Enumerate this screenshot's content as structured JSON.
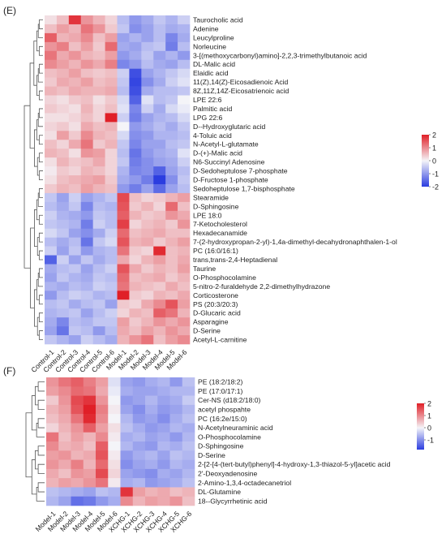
{
  "chart_data": [
    {
      "type": "heatmap",
      "panel_label": "(E)",
      "x": [
        "Control-1",
        "Control-2",
        "Control-3",
        "Control-4",
        "Control-5",
        "Control-6",
        "Model-1",
        "Model-2",
        "Model-3",
        "Model-4",
        "Model-5",
        "Model-6"
      ],
      "y": [
        "Taurocholic acid",
        "Adenine",
        "Leucylproline",
        "Norleucine",
        "3-[(methoxycarbonyl)amino]-2,2,3-trimethylbutanoic acid",
        "DL-Malic acid",
        "Elaidic acid",
        "11(Z),14(Z)-Eicosadienoic Acid",
        "8Z,11Z,14Z-Eicosatrienoic acid",
        "LPE 22:6",
        "Palmitic acid",
        "LPG 22:6",
        "D--Hydroxyglutaric acid",
        "4-Toluic acid",
        "N-Acetyl-L-glutamate",
        "D-(+)-Malic acid",
        "N6-Succinyl Adenosine",
        "D-Sedoheptulose 7-phosphate",
        "D-Fructose 1-phosphate",
        "Sedoheptulose 1,7-bisphosphate",
        "Stearamide",
        "D-Sphingosine",
        "LPE 18:0",
        "7-Ketocholesterol",
        "Hexadecanamide",
        "7-(2-hydroxypropan-2-yl)-1,4a-dimethyl-decahydronaphthalen-1-ol",
        "PC (16:0/16:1)",
        "trans,trans-2,4-Heptadienal",
        "Taurine",
        "O-Phosphocolamine",
        "5-nitro-2-furaldehyde 2,2-dimethylhydrazone",
        "Corticosterone",
        "PS (20:3/20:3)",
        "D-Glucaric acid",
        "Asparagine",
        "D-Serine",
        "Acetyl-L-carnitine"
      ],
      "values": [
        [
          0.2,
          0.5,
          1.8,
          0.9,
          0.6,
          0.3,
          -0.6,
          -1.0,
          -0.8,
          -0.5,
          -0.7,
          -0.4
        ],
        [
          0.5,
          0.8,
          0.6,
          1.2,
          0.9,
          0.4,
          -0.5,
          -1.1,
          -0.9,
          -0.6,
          -0.8,
          -0.7
        ],
        [
          1.4,
          0.6,
          0.7,
          1.0,
          0.5,
          0.8,
          -0.9,
          -0.7,
          -0.9,
          -0.6,
          -1.2,
          -0.8
        ],
        [
          0.9,
          1.1,
          0.5,
          0.8,
          0.4,
          1.3,
          -0.8,
          -0.9,
          -0.6,
          -0.5,
          -1.3,
          -0.6
        ],
        [
          1.2,
          0.7,
          0.9,
          0.6,
          0.5,
          0.8,
          -1.0,
          -0.8,
          -0.5,
          -0.9,
          -0.7,
          -1.0
        ],
        [
          1.0,
          0.8,
          0.6,
          0.9,
          0.7,
          1.1,
          -1.2,
          -1.0,
          -0.6,
          -0.8,
          -0.9,
          -0.6
        ],
        [
          0.5,
          0.6,
          0.8,
          0.5,
          0.4,
          0.5,
          -0.4,
          -1.8,
          -0.9,
          -0.7,
          -0.5,
          -0.3
        ],
        [
          0.4,
          0.7,
          0.6,
          0.8,
          0.5,
          0.6,
          -0.5,
          -1.9,
          -1.1,
          -0.8,
          -0.4,
          -0.2
        ],
        [
          0.6,
          0.5,
          0.7,
          0.6,
          0.6,
          0.7,
          -0.6,
          -1.8,
          -0.8,
          -0.6,
          -0.6,
          -0.5
        ],
        [
          0.3,
          0.2,
          0.4,
          0.5,
          0.2,
          0.4,
          -0.3,
          -1.6,
          -0.2,
          -0.6,
          -0.5,
          0.0
        ],
        [
          0.4,
          0.3,
          0.2,
          0.6,
          0.3,
          0.5,
          -0.2,
          -1.2,
          -0.4,
          -0.8,
          -0.3,
          -0.1
        ],
        [
          0.2,
          0.2,
          0.3,
          0.5,
          0.3,
          2.0,
          -0.4,
          -1.3,
          -0.9,
          -0.7,
          -0.6,
          -0.3
        ],
        [
          0.3,
          0.4,
          0.2,
          0.7,
          0.5,
          0.6,
          0.0,
          -1.0,
          -0.8,
          -0.6,
          -0.8,
          -0.5
        ],
        [
          0.2,
          0.8,
          0.4,
          1.0,
          0.6,
          0.5,
          -0.3,
          -1.1,
          -1.0,
          -0.7,
          -0.7,
          -0.6
        ],
        [
          0.5,
          0.3,
          0.7,
          1.2,
          0.4,
          0.6,
          -0.5,
          -1.2,
          -0.9,
          -0.9,
          -0.6,
          -0.5
        ],
        [
          0.6,
          0.5,
          0.2,
          0.9,
          0.8,
          0.3,
          -0.6,
          -1.4,
          -1.0,
          -0.8,
          -0.7,
          -0.2
        ],
        [
          0.2,
          0.6,
          0.4,
          0.5,
          0.7,
          0.3,
          -0.5,
          -1.3,
          -1.1,
          -0.9,
          -0.8,
          -0.4
        ],
        [
          0.1,
          0.4,
          0.3,
          0.6,
          0.5,
          0.3,
          -0.7,
          -1.2,
          -1.1,
          -1.6,
          -0.9,
          -0.6
        ],
        [
          0.2,
          0.5,
          0.6,
          0.7,
          0.8,
          0.4,
          -0.8,
          -1.0,
          -1.3,
          -2.0,
          -1.1,
          -0.5
        ],
        [
          0.4,
          0.6,
          0.5,
          0.8,
          0.6,
          0.5,
          -1.0,
          -1.3,
          -0.9,
          -1.5,
          -0.9,
          -0.6
        ],
        [
          -0.5,
          -0.9,
          -0.4,
          -0.9,
          -0.7,
          -0.5,
          1.6,
          0.5,
          0.3,
          0.4,
          0.6,
          0.8
        ],
        [
          -0.6,
          -0.8,
          -0.5,
          -1.2,
          -0.6,
          -0.7,
          1.5,
          0.4,
          0.6,
          0.3,
          1.3,
          0.5
        ],
        [
          -0.4,
          -0.7,
          -0.8,
          -1.0,
          -0.5,
          -0.6,
          1.4,
          0.6,
          0.4,
          0.5,
          0.9,
          0.7
        ],
        [
          -0.5,
          -0.6,
          -0.7,
          -1.3,
          -0.4,
          -0.6,
          1.7,
          0.3,
          0.5,
          0.6,
          0.4,
          0.9
        ],
        [
          -0.3,
          -0.5,
          -0.9,
          -1.1,
          -0.8,
          -0.4,
          1.3,
          0.5,
          0.6,
          0.7,
          0.5,
          0.5
        ],
        [
          -0.6,
          -0.8,
          -0.6,
          -1.4,
          -0.5,
          -0.3,
          1.5,
          0.6,
          0.7,
          0.4,
          0.6,
          0.8
        ],
        [
          -0.4,
          -0.9,
          -0.5,
          -1.0,
          -0.7,
          -0.6,
          1.2,
          0.4,
          0.3,
          1.9,
          0.5,
          0.6
        ],
        [
          -1.6,
          -0.4,
          -0.9,
          -0.5,
          -0.8,
          -0.6,
          0.7,
          0.3,
          0.6,
          0.8,
          0.5,
          0.7
        ],
        [
          -0.8,
          -0.6,
          -0.5,
          -0.9,
          -0.6,
          -0.4,
          1.5,
          0.7,
          0.4,
          0.6,
          0.5,
          0.8
        ],
        [
          -0.9,
          -0.5,
          -0.7,
          -0.8,
          -0.5,
          -0.6,
          1.3,
          0.5,
          0.6,
          0.7,
          0.4,
          0.6
        ],
        [
          -0.7,
          -0.8,
          -0.6,
          -0.7,
          -0.4,
          -0.5,
          1.2,
          0.6,
          0.5,
          0.4,
          0.7,
          0.5
        ],
        [
          -1.0,
          -0.6,
          -0.4,
          -0.5,
          -0.7,
          -0.6,
          2.0,
          0.4,
          0.3,
          0.6,
          0.5,
          0.7
        ],
        [
          -0.6,
          -0.5,
          -0.8,
          -0.6,
          -0.5,
          -0.9,
          0.4,
          0.3,
          0.7,
          1.0,
          1.5,
          0.8
        ],
        [
          -0.7,
          -0.6,
          -0.5,
          -0.9,
          -0.6,
          -0.4,
          0.3,
          0.6,
          0.5,
          1.4,
          1.2,
          0.6
        ],
        [
          -0.8,
          -1.2,
          -0.6,
          -0.7,
          -0.5,
          -0.5,
          0.8,
          0.4,
          0.6,
          0.9,
          0.7,
          0.9
        ],
        [
          -0.9,
          -1.4,
          -0.5,
          -0.6,
          -1.0,
          -0.6,
          0.7,
          0.5,
          0.8,
          0.6,
          0.9,
          0.7
        ],
        [
          -0.5,
          -0.7,
          -0.9,
          -0.4,
          -0.6,
          -0.8,
          0.6,
          0.9,
          1.2,
          0.5,
          0.8,
          1.0
        ]
      ],
      "legend_ticks": [
        2,
        1,
        0,
        -1,
        -2
      ],
      "color_range": [
        -2,
        2
      ],
      "colors": {
        "low": "#2b3de0",
        "mid": "#f4f4f8",
        "high": "#e01f27"
      }
    },
    {
      "type": "heatmap",
      "panel_label": "(F)",
      "x": [
        "Model-1",
        "Model-2",
        "Model-3",
        "Model-4",
        "Model-5",
        "Model-6",
        "XCHG-1",
        "XCHG-2",
        "XCHG-3",
        "XCHG-4",
        "XCHG-5",
        "XCHG-6"
      ],
      "y": [
        "PE (18:2/18:2)",
        "PE (17:0/17:1)",
        "Cer-NS (d18:2/18:0)",
        "acetyl phospahte",
        "PC (16:2e/15:0)",
        "N-Acetylneuraminic acid",
        "O-Phosphocolamine",
        "D-Sphingosine",
        "D-Serine",
        "2-[2-[4-(tert-butyl)phenyl]-4-hydroxy-1,3-thiazol-5-yl]acetic acid",
        "2'-Deoxyadenosine",
        "2-Amino-1,3,4-octadecanetriol",
        "DL-Glutamine",
        "18--Glycyrrhetinic acid"
      ],
      "values": [
        [
          0.9,
          1.2,
          1.4,
          1.1,
          0.8,
          -0.2,
          -0.8,
          -0.9,
          -0.7,
          -0.6,
          -0.9,
          -0.5
        ],
        [
          0.8,
          1.0,
          1.3,
          1.2,
          0.7,
          -0.1,
          -0.7,
          -0.8,
          -0.8,
          -0.7,
          -0.6,
          -0.6
        ],
        [
          0.4,
          0.9,
          1.6,
          1.8,
          0.9,
          0.0,
          -0.9,
          -0.8,
          -0.6,
          -0.8,
          -0.7,
          -0.4
        ],
        [
          0.6,
          0.8,
          1.5,
          2.0,
          1.1,
          0.1,
          -0.8,
          -1.0,
          -0.7,
          -0.9,
          -0.8,
          -0.6
        ],
        [
          0.5,
          0.7,
          1.2,
          1.9,
          1.0,
          0.0,
          -0.6,
          -0.9,
          -0.8,
          -1.0,
          -0.7,
          -0.5
        ],
        [
          0.3,
          0.6,
          0.9,
          1.4,
          0.8,
          0.2,
          -0.5,
          -0.7,
          -0.9,
          -0.8,
          -0.6,
          -0.7
        ],
        [
          1.2,
          0.5,
          0.8,
          0.6,
          1.0,
          0.1,
          -0.7,
          -0.6,
          -0.8,
          -0.7,
          -0.9,
          -0.6
        ],
        [
          1.0,
          0.6,
          0.7,
          0.5,
          1.4,
          0.0,
          -0.6,
          -0.8,
          -0.9,
          -0.6,
          -0.7,
          -0.5
        ],
        [
          0.8,
          0.9,
          0.6,
          0.7,
          1.5,
          0.1,
          -0.9,
          -0.7,
          -0.6,
          -0.8,
          -0.5,
          -0.6
        ],
        [
          0.9,
          0.7,
          1.1,
          0.6,
          1.3,
          0.2,
          -1.0,
          -0.8,
          -0.7,
          -0.9,
          -0.6,
          -0.7
        ],
        [
          0.7,
          0.5,
          0.9,
          0.8,
          1.6,
          0.3,
          -0.8,
          -0.9,
          -1.0,
          -0.7,
          -0.8,
          -0.6
        ],
        [
          0.6,
          0.8,
          0.7,
          0.9,
          1.2,
          0.1,
          -0.7,
          -0.6,
          -0.9,
          -0.8,
          -0.7,
          -0.5
        ],
        [
          -0.5,
          -0.6,
          -0.7,
          -0.8,
          -0.5,
          -0.6,
          1.8,
          0.8,
          0.6,
          0.7,
          0.5,
          0.6
        ],
        [
          -0.6,
          -0.8,
          -1.3,
          -1.2,
          -0.9,
          -0.7,
          1.0,
          0.6,
          0.8,
          0.7,
          0.9,
          0.5
        ]
      ],
      "legend_ticks": [
        2,
        1,
        0,
        -1
      ],
      "color_range": [
        -1.8,
        2
      ],
      "colors": {
        "low": "#2b3de0",
        "mid": "#f4f4f8",
        "high": "#e01f27"
      }
    }
  ]
}
